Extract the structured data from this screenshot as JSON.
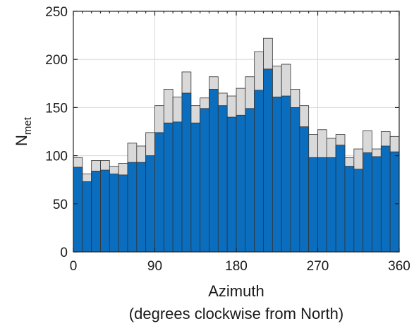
{
  "chart_data": {
    "type": "bar",
    "stacked": false,
    "overlaid": true,
    "x_bin_width": 10,
    "x": [
      5,
      15,
      25,
      35,
      45,
      55,
      65,
      75,
      85,
      95,
      105,
      115,
      125,
      135,
      145,
      155,
      165,
      175,
      185,
      195,
      205,
      215,
      225,
      235,
      245,
      255,
      265,
      275,
      285,
      295,
      305,
      315,
      325,
      335,
      345,
      355
    ],
    "series": [
      {
        "color": "#d9d9d9",
        "values": [
          98,
          81,
          95,
          95,
          89,
          92,
          113,
          110,
          124,
          152,
          169,
          161,
          187,
          152,
          160,
          182,
          165,
          162,
          170,
          182,
          208,
          222,
          193,
          195,
          169,
          152,
          122,
          127,
          118,
          122,
          98,
          107,
          126,
          107,
          125,
          120
        ]
      },
      {
        "color": "#0a6dbd",
        "values": [
          88,
          73,
          84,
          85,
          81,
          80,
          93,
          93,
          100,
          124,
          134,
          135,
          165,
          134,
          149,
          169,
          152,
          140,
          142,
          149,
          168,
          190,
          161,
          162,
          150,
          130,
          98,
          98,
          98,
          111,
          89,
          86,
          103,
          99,
          110,
          104
        ]
      }
    ],
    "xlabel": "Azimuth",
    "xlabel_sub": "(degrees clockwise from North)",
    "ylabel_main": "N",
    "ylabel_sub": "met",
    "xlim": [
      0,
      360
    ],
    "ylim": [
      0,
      250
    ],
    "x_ticks": [
      0,
      90,
      180,
      270,
      360
    ],
    "y_ticks": [
      0,
      50,
      100,
      150,
      200,
      250
    ],
    "grid": true
  }
}
